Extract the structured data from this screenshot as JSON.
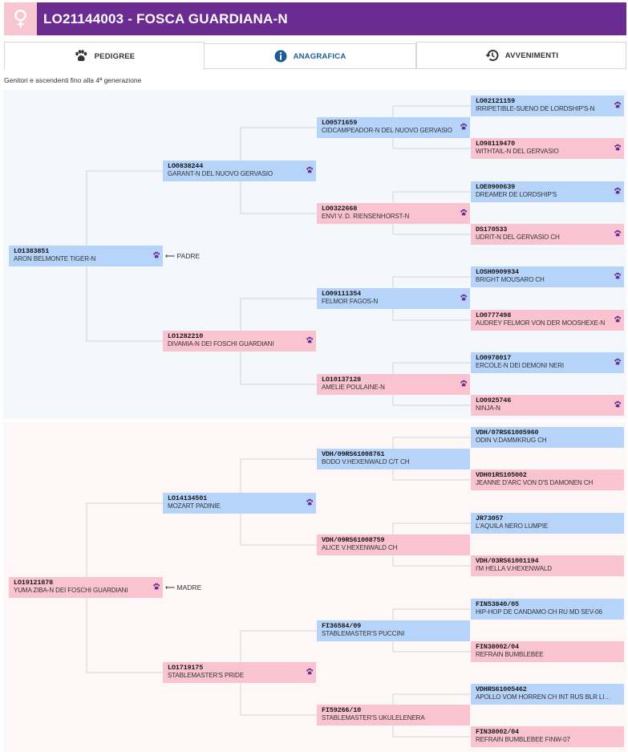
{
  "header": {
    "title": "LO21144003 - FOSCA GUARDIANA-N",
    "sex_symbol": "♀",
    "color": "#6a2c91"
  },
  "tabs": [
    {
      "label": "PEDIGREE",
      "icon": "paw-icon"
    },
    {
      "label": "ANAGRAFICA",
      "icon": "info-icon"
    },
    {
      "label": "AVVENIMENTI",
      "icon": "history-icon"
    }
  ],
  "subtitle": "Genitori e ascendenti fino alla 4ª generazione",
  "relations": {
    "father": "⟵ PADRE",
    "mother": "⟵ MADRE"
  },
  "colors": {
    "male": "#b6d3f9",
    "female": "#f9c3cf",
    "paw": "#6a2c91"
  },
  "dogs": {
    "p": {
      "code": "LO1383851",
      "name": "ARON BELMONTE TIGER-N",
      "sex": "m",
      "paw": true
    },
    "pp": {
      "code": "LO0838244",
      "name": "GARANT-N DEL NUOVO GERVASIO",
      "sex": "m",
      "paw": true
    },
    "pm": {
      "code": "LO1282210",
      "name": "DIVAMIA-N DEI FOSCHI GUARDIANI",
      "sex": "f",
      "paw": true
    },
    "ppp": {
      "code": "LO0571659",
      "name": "CIDCAMPEADOR-N DEL NUOVO GERVASIO",
      "sex": "m",
      "paw": true
    },
    "ppm": {
      "code": "LO0322668",
      "name": "ENVI V. D. RIENSENHORST-N",
      "sex": "f",
      "paw": true
    },
    "pmp": {
      "code": "LO09111354",
      "name": "FELMOR FAGOS-N",
      "sex": "m",
      "paw": true
    },
    "pmm": {
      "code": "LO10137128",
      "name": "AMELIE POULAINE-N",
      "sex": "f",
      "paw": true
    },
    "pppp": {
      "code": "LO02121159",
      "name": "IRRIPETIBLE-SUENO DE LORDSHIP'S-N",
      "sex": "m",
      "paw": true
    },
    "pppm": {
      "code": "LO98119470",
      "name": "WITHTAIL-N DEL GERVASIO",
      "sex": "f",
      "paw": true
    },
    "ppmp": {
      "code": "LOE0900639",
      "name": "DREAMER DE LORDSHIP'S",
      "sex": "m",
      "paw": true
    },
    "ppmm": {
      "code": "DS170533",
      "name": "UDRIT-N DEL GERVASIO CH",
      "sex": "f",
      "paw": true
    },
    "pmpp": {
      "code": "LOSH0909934",
      "name": "BRIGHT MOUSARO CH",
      "sex": "m",
      "paw": true
    },
    "pmpm": {
      "code": "LO0777498",
      "name": "AUDREY FELMOR VON DER MOOSHEXE-N",
      "sex": "f",
      "paw": true
    },
    "pmmp": {
      "code": "LO0978017",
      "name": "ERCOLE-N DEI DEMONI NERI",
      "sex": "m",
      "paw": true
    },
    "pmmm": {
      "code": "LO0925746",
      "name": "NINJA-N",
      "sex": "f",
      "paw": true
    },
    "m": {
      "code": "LO19121878",
      "name": "YUMA ZIBA-N DEI FOSCHI GUARDIANI",
      "sex": "f",
      "paw": true
    },
    "mp": {
      "code": "LO14134501",
      "name": "MOZART PADINIE",
      "sex": "m",
      "paw": true
    },
    "mm": {
      "code": "LO1719175",
      "name": "STABLEMASTER'S PRIDE",
      "sex": "f",
      "paw": true
    },
    "mpp": {
      "code": "VDH/09RS61008761",
      "name": "BODO V.HEXENWALD C/T CH",
      "sex": "m",
      "paw": false
    },
    "mpm": {
      "code": "VDH/09RS61008759",
      "name": "ALICE V.HEXENWALD CH",
      "sex": "f",
      "paw": false
    },
    "mmp": {
      "code": "FI36584/09",
      "name": "STABLEMASTER'S PUCCINI",
      "sex": "m",
      "paw": false
    },
    "mmm": {
      "code": "FI59266/10",
      "name": "STABLEMASTER'S UKULELENERA",
      "sex": "f",
      "paw": false
    },
    "mppp": {
      "code": "VDH/07RS61005960",
      "name": "ODIN V.DAMMKRUG CH",
      "sex": "m",
      "paw": false
    },
    "mppm": {
      "code": "VDH01RS105002",
      "name": "JEANNE D'ARC VON D'S DAMONEN CH",
      "sex": "f",
      "paw": false
    },
    "mpmp": {
      "code": "JR73057",
      "name": "L'AQUILA NERO LUMPIE",
      "sex": "m",
      "paw": false
    },
    "mpmm": {
      "code": "VDH/03RS61001194",
      "name": "I'M HELLA V.HEXENWALD",
      "sex": "f",
      "paw": false
    },
    "mmpp": {
      "code": "FIN53840/05",
      "name": "HIP-HOP DE CANDAMO CH RU MD SEV-06",
      "sex": "m",
      "paw": false
    },
    "mmpm": {
      "code": "FIN38002/04",
      "name": "REFRAIN BUMBLEBEE",
      "sex": "f",
      "paw": false
    },
    "mmmp": {
      "code": "VDHRS61005462",
      "name": "APOLLO VOM HORREN CH INT RUS BLR LIT UK...",
      "sex": "m",
      "paw": false
    },
    "mmmm": {
      "code": "FIN38002/04",
      "name": "REFRAIN BUMBLEBEE FINW-07",
      "sex": "f",
      "paw": false
    }
  }
}
